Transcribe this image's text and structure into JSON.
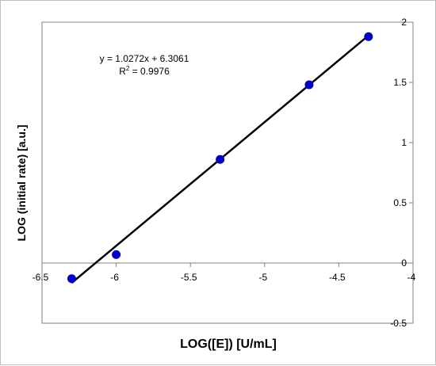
{
  "chart_data": {
    "type": "scatter",
    "title": "",
    "xlabel": "LOG([E]) [U/mL]",
    "ylabel": "LOG (initial rate) [a.u.]",
    "xlim": [
      -6.5,
      -4
    ],
    "ylim": [
      -0.5,
      2
    ],
    "x_ticks": [
      "-6.5",
      "-6",
      "-5.5",
      "-5",
      "-4.5",
      "-4"
    ],
    "y_ticks": [
      "-0.5",
      "0",
      "0.5",
      "1",
      "1.5",
      "2"
    ],
    "x_tick_values": [
      -6.5,
      -6,
      -5.5,
      -5,
      -4.5,
      -4
    ],
    "y_tick_values": [
      -0.5,
      0,
      0.5,
      1,
      1.5,
      2
    ],
    "y_axis_position": "right",
    "grid": false,
    "legend": "none",
    "colors": {
      "points": "#0000cc",
      "trendline": "#000000"
    },
    "series": [
      {
        "x": [
          -6.3,
          -6.0,
          -5.3,
          -4.7,
          -4.3
        ],
        "y": [
          -0.13,
          0.07,
          0.86,
          1.48,
          1.88
        ]
      }
    ],
    "trendline": {
      "type": "linear",
      "slope": 1.0272,
      "intercept": 6.3061,
      "x_range": [
        -6.3,
        -4.3
      ],
      "equation_label": "y = 1.0272x + 6.3061",
      "r2_prefix": "R",
      "r2_superscript": "2",
      "r2_value": " = 0.9976"
    }
  }
}
